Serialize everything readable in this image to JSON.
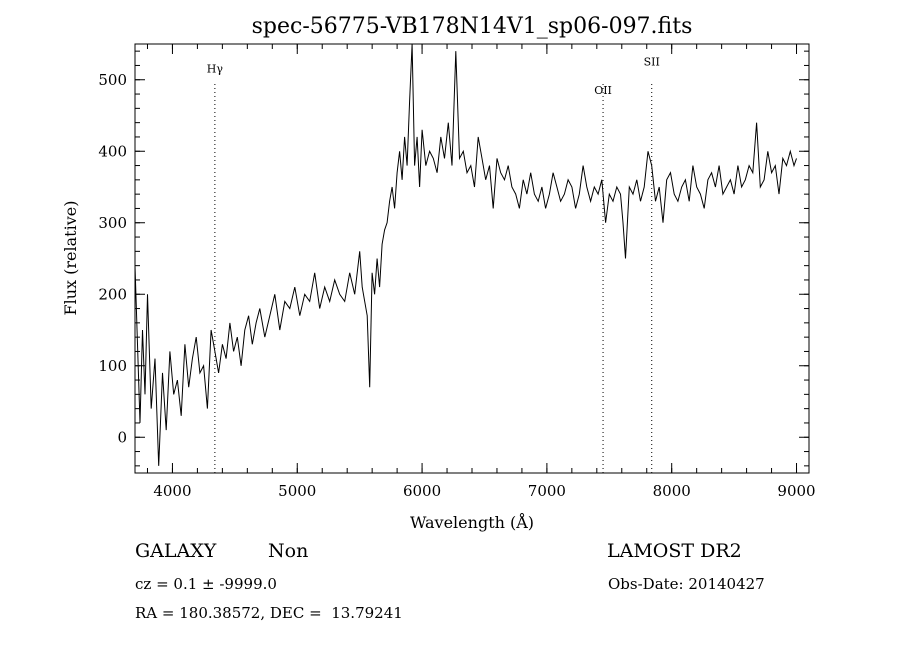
{
  "chart_data": {
    "type": "line",
    "title": "spec-56775-VB178N14V1_sp06-097.fits",
    "xlabel": "Wavelength (Å)",
    "ylabel": "Flux (relative)",
    "xlim": [
      3700,
      9100
    ],
    "ylim": [
      -50,
      550
    ],
    "xticks": [
      "4000",
      "5000",
      "6000",
      "7000",
      "8000",
      "9000"
    ],
    "yticks": [
      "0",
      "100",
      "200",
      "300",
      "400",
      "500"
    ],
    "grid": false,
    "series": [
      {
        "x": [
          3700,
          3720,
          3740,
          3760,
          3780,
          3800,
          3830,
          3860,
          3890,
          3920,
          3950,
          3980,
          4010,
          4040,
          4070,
          4100,
          4130,
          4160,
          4190,
          4220,
          4250,
          4280,
          4310,
          4340,
          4370,
          4400,
          4430,
          4460,
          4490,
          4520,
          4550,
          4580,
          4610,
          4640,
          4670,
          4700,
          4740,
          4780,
          4820,
          4860,
          4900,
          4940,
          4980,
          5020,
          5060,
          5100,
          5140,
          5180,
          5220,
          5260,
          5300,
          5340,
          5380,
          5420,
          5460,
          5500,
          5520,
          5540,
          5560,
          5580,
          5600,
          5620,
          5640,
          5660,
          5680,
          5700,
          5720,
          5740,
          5760,
          5780,
          5800,
          5820,
          5840,
          5860,
          5880,
          5900,
          5920,
          5940,
          5960,
          5980,
          6000,
          6030,
          6060,
          6090,
          6120,
          6150,
          6180,
          6210,
          6240,
          6270,
          6300,
          6330,
          6360,
          6390,
          6420,
          6450,
          6480,
          6510,
          6540,
          6570,
          6600,
          6630,
          6660,
          6690,
          6720,
          6750,
          6780,
          6810,
          6840,
          6870,
          6900,
          6930,
          6960,
          6990,
          7020,
          7050,
          7080,
          7110,
          7140,
          7170,
          7200,
          7230,
          7260,
          7290,
          7320,
          7350,
          7380,
          7410,
          7440,
          7470,
          7500,
          7530,
          7560,
          7590,
          7610,
          7630,
          7660,
          7690,
          7720,
          7750,
          7780,
          7810,
          7840,
          7870,
          7900,
          7930,
          7960,
          7990,
          8020,
          8050,
          8080,
          8110,
          8140,
          8170,
          8200,
          8230,
          8260,
          8290,
          8320,
          8350,
          8380,
          8410,
          8440,
          8470,
          8500,
          8530,
          8560,
          8590,
          8620,
          8650,
          8680,
          8710,
          8740,
          8770,
          8800,
          8830,
          8860,
          8890,
          8920,
          8950,
          8980,
          9000
        ],
        "y": [
          240,
          130,
          20,
          150,
          60,
          200,
          40,
          110,
          -40,
          90,
          10,
          120,
          60,
          80,
          30,
          130,
          70,
          110,
          140,
          90,
          100,
          40,
          150,
          120,
          90,
          130,
          110,
          160,
          120,
          140,
          100,
          150,
          170,
          130,
          160,
          180,
          140,
          170,
          200,
          150,
          190,
          180,
          210,
          170,
          200,
          190,
          230,
          180,
          210,
          190,
          220,
          200,
          190,
          230,
          200,
          260,
          210,
          190,
          170,
          70,
          230,
          200,
          250,
          210,
          270,
          290,
          300,
          330,
          350,
          320,
          370,
          400,
          360,
          420,
          380,
          470,
          550,
          380,
          420,
          350,
          430,
          380,
          400,
          390,
          370,
          420,
          390,
          440,
          380,
          540,
          390,
          400,
          370,
          380,
          350,
          420,
          390,
          360,
          380,
          320,
          390,
          370,
          360,
          380,
          350,
          340,
          320,
          360,
          340,
          370,
          340,
          330,
          350,
          320,
          340,
          370,
          350,
          330,
          340,
          360,
          350,
          320,
          340,
          380,
          350,
          330,
          350,
          340,
          360,
          300,
          340,
          330,
          350,
          340,
          300,
          250,
          350,
          340,
          360,
          330,
          350,
          400,
          380,
          330,
          350,
          300,
          360,
          370,
          340,
          330,
          350,
          360,
          330,
          380,
          350,
          340,
          320,
          360,
          370,
          350,
          380,
          340,
          350,
          360,
          340,
          380,
          350,
          360,
          380,
          370,
          440,
          350,
          360,
          400,
          370,
          380,
          340,
          390,
          380,
          400,
          380,
          390
        ]
      }
    ],
    "annotations": [
      {
        "label": "Hγ",
        "x": 4340,
        "label_y": 510
      },
      {
        "label": "OII",
        "x": 7450,
        "label_y": 480
      },
      {
        "label": "SII",
        "x": 7840,
        "label_y": 520
      }
    ]
  },
  "info": {
    "class": "GALAXY",
    "subclass": "Non",
    "survey": "LAMOST DR2",
    "cz": "cz = 0.1 ± -9999.0",
    "obs_date": "Obs-Date: 20140427",
    "radec": "RA = 180.38572, DEC =  13.79241"
  }
}
